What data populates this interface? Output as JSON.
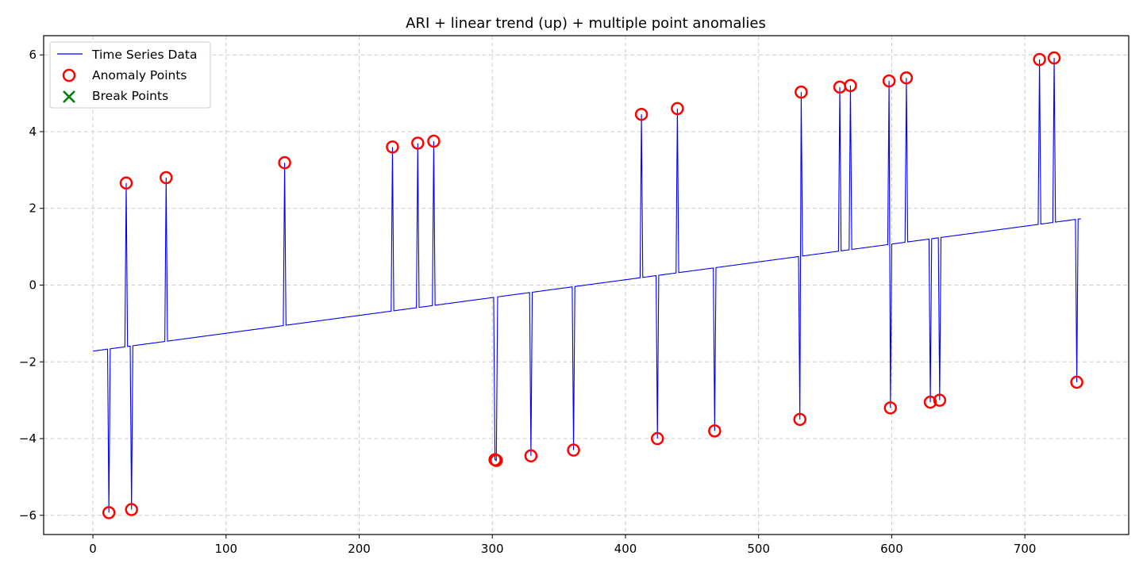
{
  "chart_data": {
    "type": "line",
    "title": "ARI + linear trend (up) + multiple point anomalies",
    "xlabel": "",
    "ylabel": "",
    "xlim": [
      -37,
      778
    ],
    "ylim": [
      -6.5,
      6.5
    ],
    "xticks": [
      0,
      100,
      200,
      300,
      400,
      500,
      600,
      700
    ],
    "yticks": [
      -6,
      -4,
      -2,
      0,
      2,
      4,
      6
    ],
    "grid": true,
    "legend_position": "top-left",
    "colors": {
      "line": "#0000ff",
      "anomaly": "#ff0000",
      "break": "#008000"
    },
    "trend": {
      "x_start": 0,
      "y_start": -1.72,
      "x_end": 742,
      "y_end": 1.73
    },
    "series": [
      {
        "name": "Time Series Data",
        "kind": "line"
      },
      {
        "name": "Anomaly Points",
        "kind": "marker",
        "x": [
          12,
          25,
          29,
          55,
          144,
          225,
          244,
          256,
          302,
          303,
          329,
          361,
          412,
          424,
          439,
          467,
          531,
          532,
          561,
          569,
          598,
          599,
          611,
          629,
          636,
          711,
          722,
          739
        ],
        "y": [
          -5.93,
          2.66,
          -5.85,
          2.8,
          3.19,
          3.6,
          3.7,
          3.75,
          -4.55,
          -4.57,
          -4.45,
          -4.3,
          4.45,
          -4.0,
          4.6,
          -3.8,
          -3.5,
          5.03,
          5.16,
          5.2,
          5.32,
          -3.2,
          5.4,
          -3.05,
          -3.0,
          5.88,
          5.92,
          -2.53
        ]
      },
      {
        "name": "Break Points",
        "kind": "marker",
        "x": [],
        "y": []
      }
    ]
  }
}
